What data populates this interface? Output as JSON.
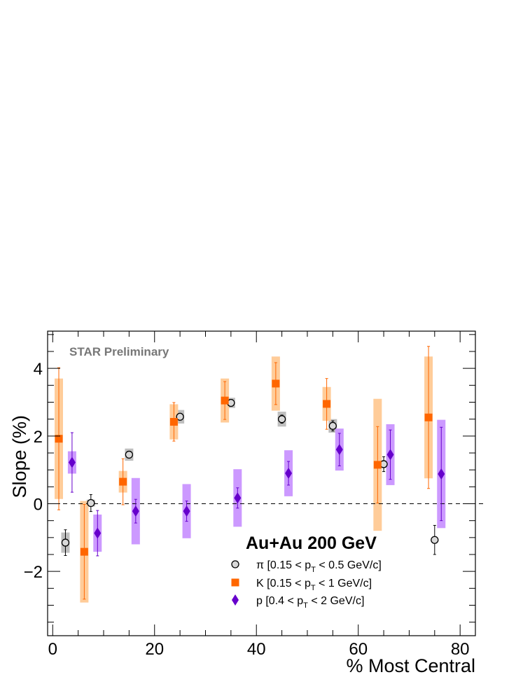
{
  "chart_data": {
    "type": "scatter",
    "annotation": "STAR Preliminary",
    "system_label": "Au+Au 200 GeV",
    "xlabel": "% Most Central",
    "ylabel": "Slope (%)",
    "xlim": [
      -1,
      83
    ],
    "ylim": [
      -3.9,
      5.1
    ],
    "x_ticks": [
      0,
      20,
      40,
      60,
      80
    ],
    "y_ticks": [
      -2,
      0,
      2,
      4
    ],
    "x_tick_labels": [
      "0",
      "20",
      "40",
      "60",
      "80"
    ],
    "y_tick_labels": [
      "−2",
      "0",
      "2",
      "4"
    ],
    "reference_line_y": 0,
    "legend_placement": "bottom-right",
    "series": [
      {
        "key": "pion",
        "legend": {
          "pre": "π [0.15 < p",
          "sub": "T",
          "post": " < 0.5 GeV/c]"
        },
        "marker": "open-circle",
        "color": "#000000",
        "sys_color": "#bfbfbf",
        "points": [
          {
            "x": 2.5,
            "y": -1.15,
            "stat": 0.38,
            "sys": 0.3
          },
          {
            "x": 7.5,
            "y": 0.02,
            "stat": 0.25,
            "sys": 0.1
          },
          {
            "x": 15,
            "y": 1.45,
            "stat": 0.1,
            "sys": 0.18
          },
          {
            "x": 25,
            "y": 2.57,
            "stat": 0.1,
            "sys": 0.2
          },
          {
            "x": 35,
            "y": 2.98,
            "stat": 0.1,
            "sys": 0.15
          },
          {
            "x": 45,
            "y": 2.5,
            "stat": 0.12,
            "sys": 0.22
          },
          {
            "x": 55,
            "y": 2.3,
            "stat": 0.15,
            "sys": 0.2
          },
          {
            "x": 65,
            "y": 1.17,
            "stat": 0.22,
            "sys": 0.1
          },
          {
            "x": 75,
            "y": -1.07,
            "stat": 0.43,
            "sys": 0.0
          }
        ]
      },
      {
        "key": "kaon",
        "legend": {
          "pre": "K [0.15 < p",
          "sub": "T",
          "post": " < 1 GeV/c]"
        },
        "marker": "square",
        "color": "#ff6600",
        "sys_color": "#ffcc99",
        "points": [
          {
            "x": 1.2,
            "y": 1.92,
            "stat": 2.1,
            "sys": 1.78
          },
          {
            "x": 6.2,
            "y": -1.42,
            "stat": 1.4,
            "sys": 1.5
          },
          {
            "x": 13.8,
            "y": 0.65,
            "stat": 0.68,
            "sys": 0.32
          },
          {
            "x": 23.8,
            "y": 2.42,
            "stat": 0.57,
            "sys": 0.52
          },
          {
            "x": 33.8,
            "y": 3.05,
            "stat": 0.56,
            "sys": 0.65
          },
          {
            "x": 43.8,
            "y": 3.55,
            "stat": 0.62,
            "sys": 0.8
          },
          {
            "x": 53.8,
            "y": 2.95,
            "stat": 0.75,
            "sys": 0.5
          },
          {
            "x": 63.8,
            "y": 1.15,
            "stat": 1.13,
            "sys": 1.95
          },
          {
            "x": 73.8,
            "y": 2.55,
            "stat": 2.1,
            "sys": 1.8
          }
        ]
      },
      {
        "key": "proton",
        "legend": {
          "pre": "p [0.4 < p",
          "sub": "T",
          "post": " < 2 GeV/c]"
        },
        "marker": "diamond",
        "color": "#6600cc",
        "sys_color": "#cc99ff",
        "points": [
          {
            "x": 3.8,
            "y": 1.22,
            "stat": 0.88,
            "sys": 0.33
          },
          {
            "x": 8.8,
            "y": -0.87,
            "stat": 0.67,
            "sys": 0.55
          },
          {
            "x": 16.3,
            "y": -0.22,
            "stat": 0.35,
            "sys": 0.98
          },
          {
            "x": 26.3,
            "y": -0.22,
            "stat": 0.3,
            "sys": 0.8
          },
          {
            "x": 36.3,
            "y": 0.17,
            "stat": 0.3,
            "sys": 0.85
          },
          {
            "x": 46.3,
            "y": 0.9,
            "stat": 0.35,
            "sys": 0.68
          },
          {
            "x": 56.3,
            "y": 1.6,
            "stat": 0.48,
            "sys": 0.62
          },
          {
            "x": 66.3,
            "y": 1.45,
            "stat": 0.73,
            "sys": 0.9
          },
          {
            "x": 76.3,
            "y": 0.88,
            "stat": 1.38,
            "sys": 1.6
          }
        ]
      }
    ]
  }
}
